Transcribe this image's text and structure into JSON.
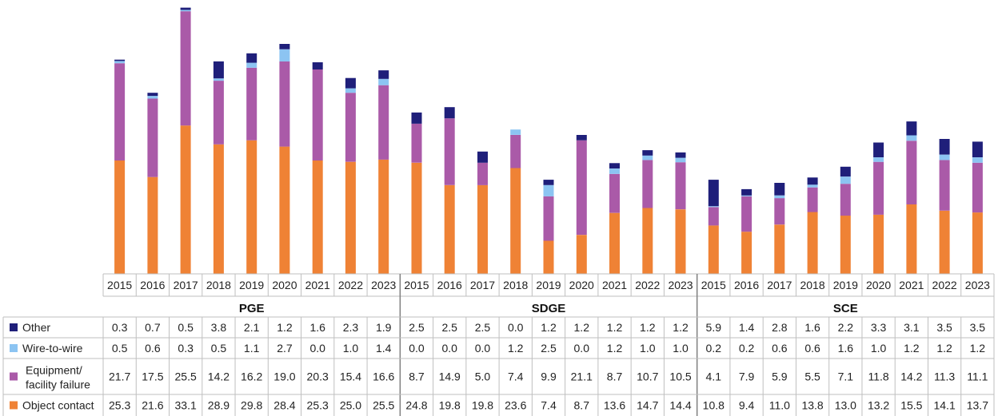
{
  "colors": {
    "Other": "#1f1f7a",
    "Wire-to-wire": "#8cc4f2",
    "Equipment/ facility failure": "#aa5aa8",
    "Object contact": "#ef8235"
  },
  "chart_data": {
    "type": "bar",
    "stacked": true,
    "groups": [
      "PGE",
      "SDGE",
      "SCE"
    ],
    "categories": [
      "2015",
      "2016",
      "2017",
      "2018",
      "2019",
      "2020",
      "2021",
      "2022",
      "2023",
      "2015",
      "2016",
      "2017",
      "2018",
      "2019",
      "2020",
      "2021",
      "2022",
      "2023",
      "2015",
      "2016",
      "2017",
      "2018",
      "2019",
      "2020",
      "2021",
      "2022",
      "2023"
    ],
    "series": [
      {
        "name": "Other",
        "values": [
          0.3,
          0.7,
          0.5,
          3.8,
          2.1,
          1.2,
          1.6,
          2.3,
          1.9,
          2.5,
          2.5,
          2.5,
          0.0,
          1.2,
          1.2,
          1.2,
          1.2,
          1.2,
          5.9,
          1.4,
          2.8,
          1.6,
          2.2,
          3.3,
          3.1,
          3.5,
          3.5
        ]
      },
      {
        "name": "Wire-to-wire",
        "values": [
          0.5,
          0.6,
          0.3,
          0.5,
          1.1,
          2.7,
          0.0,
          1.0,
          1.4,
          0.0,
          0.0,
          0.0,
          1.2,
          2.5,
          0.0,
          1.2,
          1.0,
          1.0,
          0.2,
          0.2,
          0.6,
          0.6,
          1.6,
          1.0,
          1.2,
          1.2,
          1.2
        ]
      },
      {
        "name": "Equipment/ facility failure",
        "values": [
          21.7,
          17.5,
          25.5,
          14.2,
          16.2,
          19.0,
          20.3,
          15.4,
          16.6,
          8.7,
          14.9,
          5.0,
          7.4,
          9.9,
          21.1,
          8.7,
          10.7,
          10.5,
          4.1,
          7.9,
          5.9,
          5.5,
          7.1,
          11.8,
          14.2,
          11.3,
          11.1
        ]
      },
      {
        "name": "Object contact",
        "values": [
          25.3,
          21.6,
          33.1,
          28.9,
          29.8,
          28.4,
          25.3,
          25.0,
          25.5,
          24.8,
          19.8,
          19.8,
          23.6,
          7.4,
          8.7,
          13.6,
          14.7,
          14.4,
          10.8,
          9.4,
          11.0,
          13.8,
          13.0,
          13.2,
          15.5,
          14.1,
          13.7
        ]
      }
    ],
    "legend_position": "table-left",
    "gridlines": false,
    "ylim": [
      0,
      59.5
    ]
  }
}
